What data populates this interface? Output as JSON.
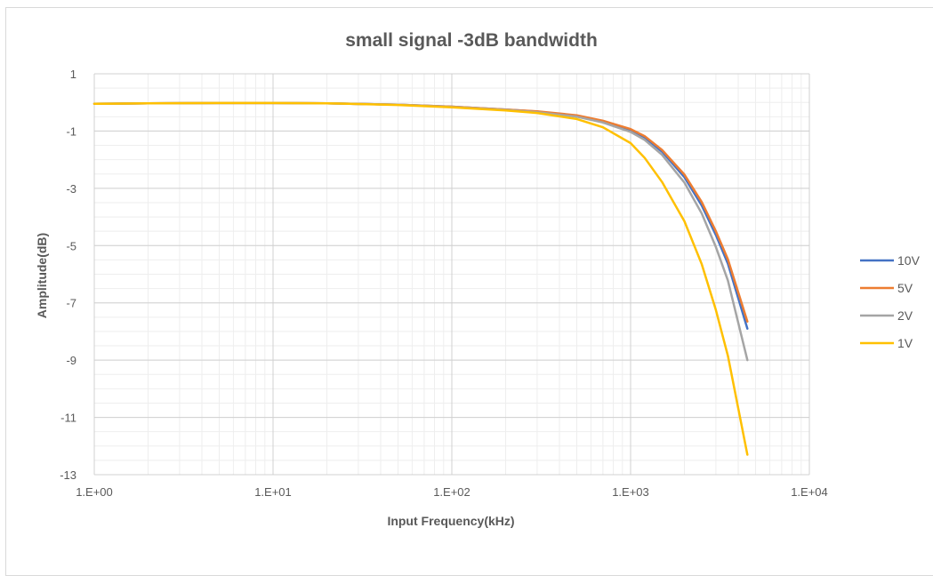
{
  "chart_data": {
    "type": "line",
    "title": "small signal -3dB bandwidth",
    "xlabel": "Input Frequency(kHz)",
    "ylabel": "Amplitude(dB)",
    "xscale": "log",
    "xlim": [
      1,
      10000
    ],
    "ylim": [
      -13,
      1
    ],
    "x_ticks": [
      1,
      10,
      100,
      1000,
      10000
    ],
    "x_tick_labels": [
      "1.E+00",
      "1.E+01",
      "1.E+02",
      "1.E+03",
      "1.E+04"
    ],
    "y_ticks": [
      1,
      -1,
      -3,
      -5,
      -7,
      -9,
      -11,
      -13
    ],
    "y_tick_labels": [
      "1",
      "-1",
      "-3",
      "-5",
      "-7",
      "-9",
      "-11",
      "-13"
    ],
    "grid": true,
    "legend_position": "right",
    "x": [
      1,
      2,
      5,
      10,
      20,
      50,
      100,
      200,
      300,
      500,
      700,
      1000,
      1200,
      1500,
      2000,
      2500,
      3000,
      3500,
      4500
    ],
    "series": [
      {
        "name": "10V",
        "color": "#4472C4",
        "values": [
          -0.05,
          -0.03,
          -0.02,
          -0.02,
          -0.03,
          -0.08,
          -0.15,
          -0.25,
          -0.32,
          -0.47,
          -0.66,
          -0.96,
          -1.22,
          -1.72,
          -2.61,
          -3.6,
          -4.63,
          -5.63,
          -7.9
        ]
      },
      {
        "name": "5V",
        "color": "#ED7D31",
        "values": [
          -0.05,
          -0.03,
          -0.02,
          -0.02,
          -0.03,
          -0.08,
          -0.15,
          -0.25,
          -0.31,
          -0.45,
          -0.64,
          -0.93,
          -1.18,
          -1.66,
          -2.52,
          -3.48,
          -4.5,
          -5.48,
          -7.65
        ]
      },
      {
        "name": "2V",
        "color": "#A5A5A5",
        "values": [
          -0.05,
          -0.03,
          -0.02,
          -0.02,
          -0.03,
          -0.08,
          -0.16,
          -0.26,
          -0.34,
          -0.5,
          -0.7,
          -1.03,
          -1.31,
          -1.83,
          -2.8,
          -3.88,
          -5.05,
          -6.22,
          -9.0
        ]
      },
      {
        "name": "1V",
        "color": "#FFC000",
        "values": [
          -0.05,
          -0.03,
          -0.02,
          -0.02,
          -0.03,
          -0.09,
          -0.17,
          -0.28,
          -0.37,
          -0.58,
          -0.87,
          -1.42,
          -1.94,
          -2.78,
          -4.15,
          -5.65,
          -7.25,
          -8.85,
          -12.3
        ]
      }
    ]
  }
}
